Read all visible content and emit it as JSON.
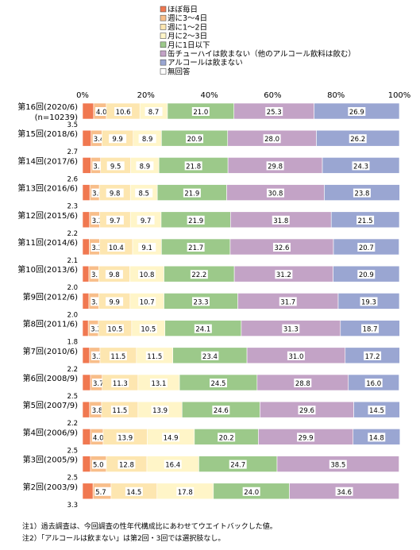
{
  "chart_data": {
    "type": "bar",
    "orientation": "horizontal",
    "stacked": true,
    "percent": true,
    "legend_position": "top",
    "xlim": [
      0,
      100
    ],
    "x_ticks": [
      "0%",
      "20%",
      "40%",
      "60%",
      "80%",
      "100%"
    ],
    "grid": false,
    "categories": [
      "第16回(2020/6)",
      "第15回(2018/6)",
      "第14回(2017/6)",
      "第13回(2016/6)",
      "第12回(2015/6)",
      "第11回(2014/6)",
      "第10回(2013/6)",
      "第9回(2012/6)",
      "第8回(2011/6)",
      "第7回(2010/6)",
      "第6回(2008/9)",
      "第5回(2007/9)",
      "第4回(2006/9)",
      "第3回(2005/9)",
      "第2回(2003/9)"
    ],
    "sub_labels": [
      "(n=10239)",
      "",
      "",
      "",
      "",
      "",
      "",
      "",
      "",
      "",
      "",
      "",
      "",
      "",
      ""
    ],
    "series": [
      {
        "name": "ほぼ毎日",
        "color": "#f07850",
        "values": [
          3.5,
          2.7,
          2.6,
          2.3,
          2.2,
          2.1,
          2.0,
          2.0,
          1.8,
          2.2,
          2.5,
          2.2,
          2.5,
          2.5,
          3.3
        ],
        "labels": [
          "3.5",
          "2.7",
          "2.6",
          "2.3",
          "2.2",
          "2.1",
          "2.0",
          "2.0",
          "1.8",
          "2.2",
          "2.5",
          "2.2",
          "2.5",
          "2.5",
          "3.3"
        ]
      },
      {
        "name": "週に3～4日",
        "color": "#f8be8a",
        "values": [
          4.0,
          3.4,
          3.1,
          3.0,
          3.2,
          3.3,
          3.1,
          3.1,
          3.2,
          3.3,
          3.7,
          3.8,
          4.0,
          5.0,
          5.7
        ],
        "labels": [
          "4.0",
          "3.4",
          "3.1",
          "3.0",
          "3.2",
          "3.3",
          "3.1",
          "3.1",
          "3.2",
          "3.3",
          "3.7",
          "3.8",
          "4.0",
          "5.0",
          "5.7"
        ]
      },
      {
        "name": "週に1～2日",
        "color": "#fde6b0",
        "values": [
          10.6,
          9.9,
          9.5,
          9.8,
          9.7,
          10.4,
          9.8,
          9.9,
          10.5,
          11.5,
          11.3,
          11.5,
          13.9,
          12.8,
          14.5
        ],
        "labels": [
          "10.6",
          "9.9",
          "9.5",
          "9.8",
          "9.7",
          "10.4",
          "9.8",
          "9.9",
          "10.5",
          "11.5",
          "11.3",
          "11.5",
          "13.9",
          "12.8",
          "14.5"
        ]
      },
      {
        "name": "月に2～3日",
        "color": "#fff5c8",
        "values": [
          8.7,
          8.9,
          8.9,
          8.5,
          9.7,
          9.1,
          10.8,
          10.7,
          10.5,
          11.5,
          13.1,
          13.9,
          14.9,
          16.4,
          17.8
        ],
        "labels": [
          "8.7",
          "8.9",
          "8.9",
          "8.5",
          "9.7",
          "9.1",
          "10.8",
          "10.7",
          "10.5",
          "11.5",
          "13.1",
          "13.9",
          "14.9",
          "16.4",
          "17.8"
        ]
      },
      {
        "name": "月に1日以下",
        "color": "#9cc98a",
        "values": [
          21.0,
          20.9,
          21.8,
          21.9,
          21.9,
          21.7,
          22.2,
          23.3,
          24.1,
          23.4,
          24.5,
          24.6,
          20.2,
          24.7,
          24.0
        ],
        "labels": [
          "21.0",
          "20.9",
          "21.8",
          "21.9",
          "21.9",
          "21.7",
          "22.2",
          "23.3",
          "24.1",
          "23.4",
          "24.5",
          "24.6",
          "20.2",
          "24.7",
          "24.0"
        ]
      },
      {
        "name": "缶チューハイは飲まない（他のアルコール飲料は飲む）",
        "color": "#c3a3c6",
        "values": [
          25.3,
          28.0,
          29.8,
          30.8,
          31.8,
          32.6,
          31.2,
          31.7,
          31.3,
          31.0,
          28.8,
          29.6,
          29.9,
          38.5,
          34.6
        ],
        "labels": [
          "25.3",
          "28.0",
          "29.8",
          "30.8",
          "31.8",
          "32.6",
          "31.2",
          "31.7",
          "31.3",
          "31.0",
          "28.8",
          "29.6",
          "29.9",
          "38.5",
          "34.6"
        ]
      },
      {
        "name": "アルコールは飲まない",
        "color": "#9aa6d2",
        "values": [
          26.9,
          26.2,
          24.3,
          23.8,
          21.5,
          20.7,
          20.9,
          19.3,
          18.7,
          17.2,
          16.0,
          14.5,
          14.8,
          0,
          0
        ],
        "labels": [
          "26.9",
          "26.2",
          "24.3",
          "23.8",
          "21.5",
          "20.7",
          "20.9",
          "19.3",
          "18.7",
          "17.2",
          "16.0",
          "14.5",
          "14.8",
          "",
          ""
        ]
      },
      {
        "name": "無回答",
        "color": "#ffffff",
        "values": [
          0,
          0,
          0,
          0,
          0,
          0,
          0,
          0,
          0,
          0,
          0,
          0,
          0,
          0,
          0
        ],
        "labels": [
          "",
          "",
          "",
          "",
          "",
          "",
          "",
          "",
          "",
          "",
          "",
          "",
          "",
          "",
          ""
        ]
      }
    ]
  },
  "notes": [
    "注1）過去調査は、今回調査の性年代構成比にあわせてウエイトバックした値。",
    "注2）「アルコールは飲まない」は第2回・3回では選択肢なし。"
  ]
}
